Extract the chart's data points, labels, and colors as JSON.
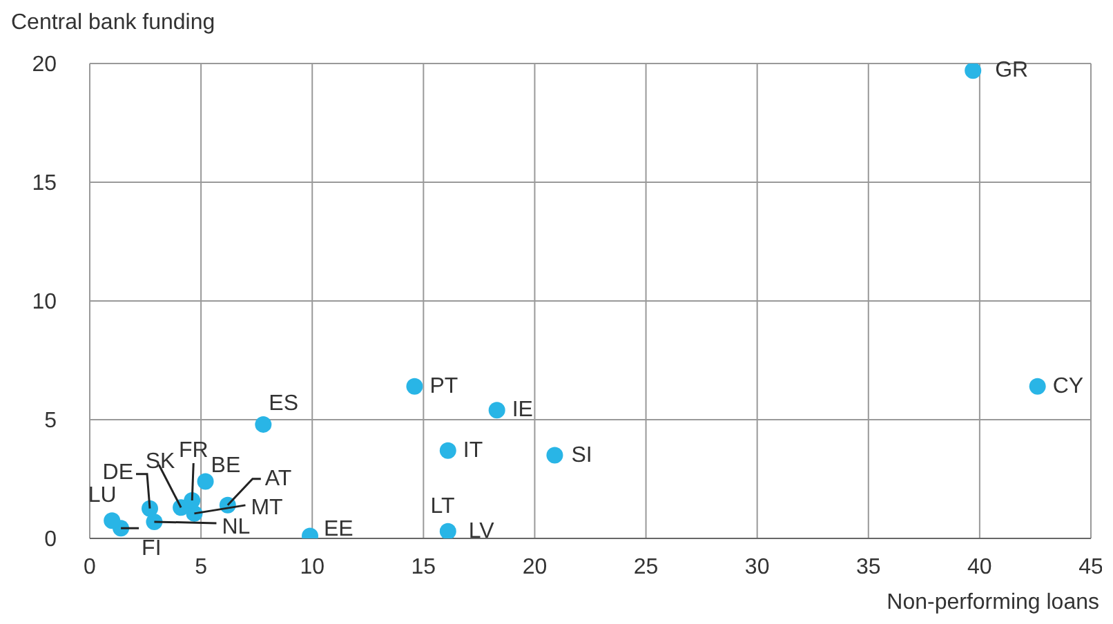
{
  "chart_data": {
    "type": "scatter",
    "xlabel": "Non-performing loans",
    "ylabel": "Central bank funding",
    "color": "#29b5e6",
    "marker": "circle",
    "grid": true,
    "x": [
      39.7,
      42.6,
      14.6,
      18.3,
      16.1,
      20.9,
      null,
      16.1,
      7.8,
      9.9,
      5.2,
      6.2,
      4.7,
      2.9,
      1.4,
      1.0,
      2.7,
      4.1,
      4.6
    ],
    "values": [
      19.7,
      6.4,
      6.4,
      5.4,
      3.7,
      3.5,
      null,
      0.3,
      4.8,
      0.1,
      2.4,
      1.4,
      1.05,
      0.7,
      0.43,
      0.75,
      1.26,
      1.3,
      1.6
    ],
    "xlim": [
      0,
      45
    ],
    "xticks": [
      0,
      5,
      10,
      15,
      20,
      25,
      30,
      35,
      40,
      45
    ],
    "ylim": [
      0,
      20
    ],
    "yticks": [
      0,
      5,
      10,
      15,
      20
    ],
    "annotations": [
      {
        "text": "GR",
        "x": 39.7,
        "y": 19.7
      },
      {
        "text": "CY",
        "x": 42.6,
        "y": 6.4
      },
      {
        "text": "PT",
        "x": 14.6,
        "y": 6.4
      },
      {
        "text": "IE",
        "x": 18.3,
        "y": 5.4
      },
      {
        "text": "IT",
        "x": 16.1,
        "y": 3.7
      },
      {
        "text": "SI",
        "x": 20.9,
        "y": 3.5
      },
      {
        "text": "LT",
        "x": 16.0,
        "y": 0.35
      },
      {
        "text": "LV",
        "x": 16.1,
        "y": 0.3
      },
      {
        "text": "ES",
        "x": 7.8,
        "y": 4.8
      },
      {
        "text": "EE",
        "x": 9.9,
        "y": 0.1
      },
      {
        "text": "BE",
        "x": 5.2,
        "y": 2.4
      },
      {
        "text": "AT",
        "x": 6.2,
        "y": 1.4
      },
      {
        "text": "MT",
        "x": 4.7,
        "y": 1.05
      },
      {
        "text": "NL",
        "x": 2.9,
        "y": 0.7
      },
      {
        "text": "FI",
        "x": 1.4,
        "y": 0.43
      },
      {
        "text": "LU",
        "x": 1.0,
        "y": 0.75
      },
      {
        "text": "DE",
        "x": 2.7,
        "y": 1.26
      },
      {
        "text": "SK",
        "x": 4.1,
        "y": 1.3
      },
      {
        "text": "FR",
        "x": 4.6,
        "y": 1.6
      }
    ]
  }
}
